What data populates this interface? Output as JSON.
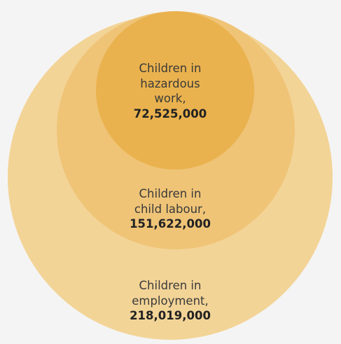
{
  "colors": {
    "background": "#f4f4f4",
    "employment": "#f3d497",
    "child_labour": "#efc477",
    "hazardous": "#eab24e"
  },
  "circles": [
    {
      "id": "employment",
      "line1": "Children in",
      "line2": "employment,",
      "value": "218,019,000"
    },
    {
      "id": "child_labour",
      "line1": "Children in",
      "line2": "child labour,",
      "value": "151,622,000"
    },
    {
      "id": "hazardous",
      "line1": "Children in",
      "line2": "hazardous",
      "line3": "work,",
      "value": "72,525,000"
    }
  ]
}
